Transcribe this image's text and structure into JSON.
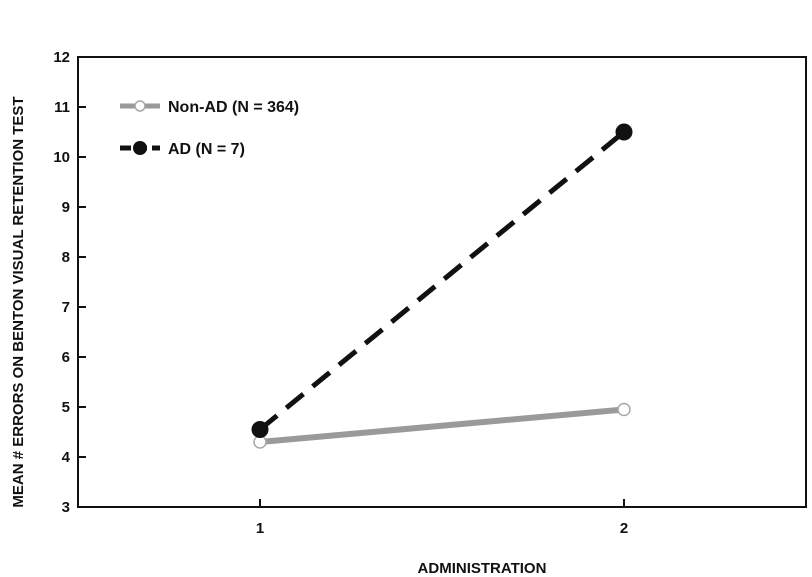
{
  "chart_data": {
    "type": "line",
    "title": "",
    "xlabel": "ADMINISTRATION",
    "ylabel": "MEAN # ERRORS ON BENTON VISUAL RETENTION TEST",
    "x": [
      1,
      2
    ],
    "xlim": [
      0.5,
      2.5
    ],
    "ylim": [
      3,
      12
    ],
    "xticks": [
      "1",
      "2"
    ],
    "yticks": [
      "3",
      "4",
      "5",
      "6",
      "7",
      "8",
      "9",
      "10",
      "11",
      "12"
    ],
    "grid": false,
    "legend_position": "top-left",
    "series": [
      {
        "name": "Non-AD (N = 364)",
        "values": [
          4.3,
          4.95
        ],
        "color": "#9a9a9a",
        "line_style": "solid",
        "marker": "open-circle"
      },
      {
        "name": "AD (N = 7)",
        "values": [
          4.55,
          10.5
        ],
        "color": "#111111",
        "line_style": "dashed",
        "marker": "filled-circle"
      }
    ]
  }
}
